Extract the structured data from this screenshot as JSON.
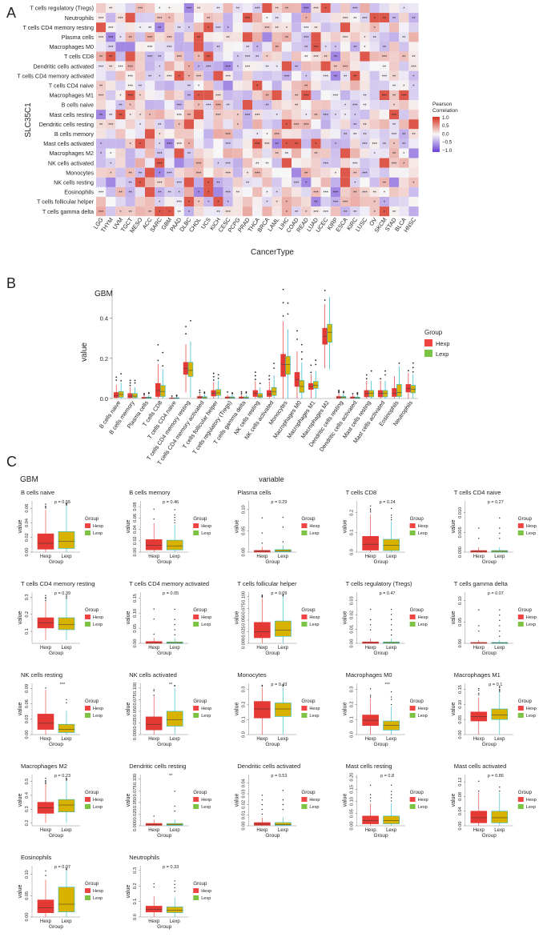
{
  "figure": {
    "panel_labels": [
      "A",
      "B",
      "C"
    ]
  },
  "chart_data": [
    {
      "type": "heatmap",
      "panel": "A",
      "ylabel": "SLC35C1",
      "xlabel": "CancerType",
      "rows": [
        "T cells regulatory (Tregs)",
        "Neutrophils",
        "T cells CD4 memory resting",
        "Plasma cells",
        "Macrophages M0",
        "T cells CD8",
        "Dendritic cells activated",
        "T cells CD4 memory activated",
        "T cells CD4 naive",
        "Macrophages M1",
        "B cells naive",
        "Mast cells resting",
        "Dendritic cells resting",
        "B cells memory",
        "Mast cells activated",
        "Macrophages M2",
        "NK cells activated",
        "Monocytes",
        "NK cells resting",
        "Eosinophils",
        "T cells follicular helper",
        "T cells gamma delta"
      ],
      "columns": [
        "LGG",
        "THYM",
        "UVM",
        "TGCT",
        "MESO",
        "ACC",
        "SARC",
        "GBM",
        "PAAD",
        "DLBC",
        "CHOL",
        "UCS",
        "KICH",
        "CESC",
        "PCPG",
        "PRAD",
        "THCA",
        "BRCA",
        "LAML",
        "LIHC",
        "COAD",
        "READ",
        "LUAD",
        "UCEC",
        "KIRP",
        "ESCA",
        "KIRC",
        "LUSC",
        "OV",
        "SKCM",
        "STAD",
        "BLCA",
        "HNSC"
      ],
      "legend": {
        "title": "Pearson\nCorrelation",
        "ticks": [
          "1.0",
          "0.5",
          "0.0",
          "−0.5",
          "−1.0"
        ],
        "low": "#6a3dd6",
        "mid": "#f7f7f7",
        "high": "#d7301f",
        "range": [
          -1,
          1
        ]
      }
    },
    {
      "type": "bar",
      "panel": "B",
      "title": "GBM",
      "ylabel": "value",
      "ylim": [
        0,
        0.55
      ],
      "yticks": [
        "0.0",
        "0.2",
        "0.4"
      ],
      "categories": [
        "B cells naive",
        "B cells memory",
        "Plasma cells",
        "T cells CD8",
        "T cells CD4 naive",
        "T cells CD4 memory resting",
        "T cells CD4 memory activated",
        "T cells follicular helper",
        "T cells regulatory (Tregs)",
        "T cells gamma delta",
        "NK cells resting",
        "NK cells activated",
        "Monocytes",
        "Macrophages M0",
        "Macrophages M1",
        "Macrophages M2",
        "Dendritic cells resting",
        "Dendritic cells activated",
        "Mast cells resting",
        "Mast cells activated",
        "Eosinophils",
        "Neutrophils"
      ],
      "legend": {
        "title": "Group",
        "items": [
          "Hexp",
          "Lexp"
        ]
      },
      "series": [
        {
          "name": "Hexp",
          "median": [
            0.015,
            0.012,
            0.003,
            0.04,
            0.002,
            0.15,
            0.005,
            0.025,
            0.004,
            0.003,
            0.025,
            0.022,
            0.17,
            0.095,
            0.06,
            0.31,
            0.005,
            0.004,
            0.025,
            0.025,
            0.025,
            0.05
          ],
          "q1": [
            0.005,
            0.004,
            0.001,
            0.01,
            0,
            0.12,
            0.001,
            0.012,
            0.001,
            0.001,
            0.01,
            0.01,
            0.11,
            0.06,
            0.045,
            0.27,
            0.001,
            0.001,
            0.008,
            0.008,
            0.01,
            0.032
          ],
          "q3": [
            0.03,
            0.025,
            0.006,
            0.075,
            0.003,
            0.18,
            0.01,
            0.04,
            0.008,
            0.008,
            0.04,
            0.04,
            0.22,
            0.13,
            0.075,
            0.35,
            0.01,
            0.008,
            0.04,
            0.04,
            0.05,
            0.07
          ]
        },
        {
          "name": "Lexp",
          "median": [
            0.02,
            0.012,
            0.004,
            0.035,
            0.002,
            0.14,
            0.004,
            0.028,
            0.004,
            0.003,
            0.012,
            0.035,
            0.17,
            0.06,
            0.065,
            0.33,
            0.005,
            0.003,
            0.025,
            0.025,
            0.03,
            0.045
          ],
          "q1": [
            0.006,
            0.004,
            0.001,
            0.01,
            0,
            0.11,
            0.001,
            0.015,
            0.001,
            0.001,
            0.005,
            0.015,
            0.12,
            0.03,
            0.05,
            0.28,
            0.001,
            0.001,
            0.008,
            0.008,
            0.01,
            0.028
          ],
          "q3": [
            0.035,
            0.025,
            0.007,
            0.065,
            0.003,
            0.18,
            0.009,
            0.045,
            0.008,
            0.008,
            0.025,
            0.055,
            0.21,
            0.09,
            0.085,
            0.37,
            0.01,
            0.007,
            0.04,
            0.04,
            0.07,
            0.065
          ]
        }
      ]
    },
    {
      "type": "bar",
      "panel": "C",
      "title": "GBM",
      "subtitle": "variable",
      "xlabel": "Group",
      "ylabel": "value",
      "groups": [
        "Hexp",
        "Lexp"
      ],
      "legend": {
        "title": "Group",
        "items": [
          "Hexp",
          "Lexp"
        ]
      },
      "facets": [
        {
          "name": "B cells naive",
          "p": "p = 0.55",
          "yticks": [
            "0.00",
            "0.02",
            "0.04",
            "0.06"
          ],
          "ymax": 0.07,
          "hexp": [
            0,
            0.004,
            0.012,
            0.025
          ],
          "lexp": [
            0,
            0.005,
            0.015,
            0.028
          ]
        },
        {
          "name": "B cells memory",
          "p": "p = 0.46",
          "yticks": [
            "0.00",
            "0.02",
            "0.04",
            "0.06",
            "0.08"
          ],
          "ymax": 0.09,
          "hexp": [
            0,
            0.004,
            0.012,
            0.022
          ],
          "lexp": [
            0,
            0.004,
            0.011,
            0.021
          ]
        },
        {
          "name": "Plasma cells",
          "p": "p = 0.29",
          "yticks": [
            "0.00",
            "0.05",
            "0.10"
          ],
          "ymax": 0.12,
          "hexp": [
            0,
            0.0,
            0.002,
            0.004
          ],
          "lexp": [
            0,
            0.001,
            0.003,
            0.006
          ]
        },
        {
          "name": "T cells CD8",
          "p": "p = 0.24",
          "yticks": [
            "0.0",
            "0.1",
            "0.2"
          ],
          "ymax": 0.26,
          "hexp": [
            0,
            0.01,
            0.04,
            0.08
          ],
          "lexp": [
            0,
            0.008,
            0.035,
            0.065
          ]
        },
        {
          "name": "T cells CD4 naive",
          "p": "p = 0.27",
          "yticks": [
            "0.000",
            "0.005",
            "0.010"
          ],
          "ymax": 0.013,
          "hexp": [
            0,
            0,
            0.0002,
            0.0004
          ],
          "lexp": [
            0,
            0,
            0.0002,
            0.0004
          ]
        },
        {
          "name": "T cells CD4 memory resting",
          "p": "p = 0.39",
          "yticks": [
            "0.1",
            "0.2",
            "0.3"
          ],
          "ymax": 0.33,
          "ymin": 0.03,
          "hexp": [
            0.05,
            0.12,
            0.15,
            0.18
          ],
          "lexp": [
            0.05,
            0.11,
            0.14,
            0.18
          ]
        },
        {
          "name": "T cells CD4 memory activated",
          "p": "p = 0.05",
          "yticks": [
            "0.00",
            "0.05",
            "0.10",
            "0.15"
          ],
          "ymax": 0.17,
          "hexp": [
            0,
            0,
            0.002,
            0.006
          ],
          "lexp": [
            0,
            0,
            0.002,
            0.005
          ]
        },
        {
          "name": "T cells follicular helper",
          "p": "p = 0.09",
          "yticks": [
            "0.000",
            "0.025",
            "0.050",
            "0.075",
            "0.100"
          ],
          "ymax": 0.11,
          "hexp": [
            0,
            0.012,
            0.025,
            0.045
          ],
          "lexp": [
            0,
            0.015,
            0.028,
            0.048
          ]
        },
        {
          "name": "T cells regulatory (Tregs)",
          "p": "p = 0.47",
          "yticks": [
            "0.00",
            "0.01",
            "0.02",
            "0.03"
          ],
          "ymax": 0.036,
          "hexp": [
            0,
            0,
            0.0005,
            0.001
          ],
          "lexp": [
            0,
            0,
            0.0005,
            0.001
          ]
        },
        {
          "name": "T cells gamma delta",
          "p": "p = 0.07",
          "yticks": [
            "0.00",
            "0.05",
            "0.10"
          ],
          "ymax": 0.12,
          "hexp": [
            0,
            0,
            0.001,
            0.002
          ],
          "lexp": [
            0,
            0,
            0.001,
            0.002
          ]
        },
        {
          "name": "NK cells resting",
          "p": "***",
          "yticks": [
            "0.00",
            "0.03",
            "0.06",
            "0.09"
          ],
          "ymax": 0.1,
          "hexp": [
            0,
            0.01,
            0.022,
            0.04
          ],
          "lexp": [
            0,
            0.004,
            0.01,
            0.02
          ]
        },
        {
          "name": "NK cells activated",
          "p": "**",
          "yticks": [
            "0.000",
            "0.025",
            "0.050",
            "0.075",
            "0.100"
          ],
          "ymax": 0.11,
          "hexp": [
            0,
            0.01,
            0.022,
            0.038
          ],
          "lexp": [
            0,
            0.018,
            0.032,
            0.05
          ]
        },
        {
          "name": "Monocytes",
          "p": "p = 0.43",
          "yticks": [
            "0.0",
            "0.1",
            "0.2",
            "0.3"
          ],
          "ymax": 0.34,
          "hexp": [
            0,
            0.11,
            0.17,
            0.22
          ],
          "lexp": [
            0,
            0.12,
            0.17,
            0.21
          ]
        },
        {
          "name": "Macrophages M0",
          "p": "***",
          "yticks": [
            "0.0",
            "0.1",
            "0.2",
            "0.3"
          ],
          "ymax": 0.34,
          "hexp": [
            0,
            0.06,
            0.095,
            0.13
          ],
          "lexp": [
            0,
            0.03,
            0.06,
            0.09
          ]
        },
        {
          "name": "Macrophages M1",
          "p": "p = 0.1",
          "yticks": [
            "0.00",
            "0.05",
            "0.10",
            "0.15"
          ],
          "ymax": 0.17,
          "hexp": [
            0,
            0.045,
            0.06,
            0.075
          ],
          "lexp": [
            0,
            0.05,
            0.065,
            0.085
          ]
        },
        {
          "name": "Macrophages M2",
          "p": "p = 0.23",
          "yticks": [
            "0.2",
            "0.3",
            "0.4",
            "0.5"
          ],
          "ymax": 0.55,
          "ymin": 0.18,
          "hexp": [
            0.2,
            0.27,
            0.31,
            0.35
          ],
          "lexp": [
            0.2,
            0.28,
            0.33,
            0.37
          ]
        },
        {
          "name": "Dendritic cells resting",
          "p": "**",
          "yticks": [
            "0.000",
            "0.025",
            "0.050",
            "0.075",
            "0.100"
          ],
          "ymax": 0.11,
          "hexp": [
            0,
            0.001,
            0.003,
            0.005
          ],
          "lexp": [
            0,
            0.001,
            0.003,
            0.005
          ]
        },
        {
          "name": "Dendritic cells activated",
          "p": "p = 0.53",
          "yticks": [
            "0.00",
            "0.01",
            "0.02",
            "0.03",
            "0.04"
          ],
          "ymax": 0.048,
          "hexp": [
            0,
            0.0005,
            0.0015,
            0.003
          ],
          "lexp": [
            0,
            0.0005,
            0.0012,
            0.003
          ]
        },
        {
          "name": "Mast cells resting",
          "p": "p = 0.8",
          "yticks": [
            "0.00",
            "0.05",
            "0.10",
            "0.15",
            "0.20"
          ],
          "ymax": 0.21,
          "hexp": [
            0,
            0.008,
            0.022,
            0.04
          ],
          "lexp": [
            0,
            0.008,
            0.022,
            0.04
          ]
        },
        {
          "name": "Mast cells activated",
          "p": "p = 0.86",
          "yticks": [
            "0.00",
            "0.04",
            "0.08",
            "0.12"
          ],
          "ymax": 0.14,
          "hexp": [
            0,
            0.008,
            0.022,
            0.04
          ],
          "lexp": [
            0,
            0.008,
            0.022,
            0.04
          ]
        },
        {
          "name": "Eosinophils",
          "p": "p = 0.07",
          "yticks": [
            "0.00",
            "0.05",
            "0.10"
          ],
          "ymax": 0.12,
          "hexp": [
            0,
            0.01,
            0.022,
            0.04
          ],
          "lexp": [
            0,
            0.012,
            0.03,
            0.07
          ]
        },
        {
          "name": "Neutrophils",
          "p": "p = 0.33",
          "yticks": [
            "0.0",
            "0.1",
            "0.2",
            "0.3"
          ],
          "ymax": 0.33,
          "hexp": [
            0,
            0.032,
            0.05,
            0.07
          ],
          "lexp": [
            0,
            0.028,
            0.045,
            0.065
          ]
        }
      ]
    }
  ],
  "colors": {
    "hexp": "#e53935",
    "lexp": "#d9b200",
    "hexp_line": "#e53935",
    "lexp_line": "#26b7c7",
    "legend_hexp": "#ef4444",
    "legend_lexp": "#7cc243"
  }
}
